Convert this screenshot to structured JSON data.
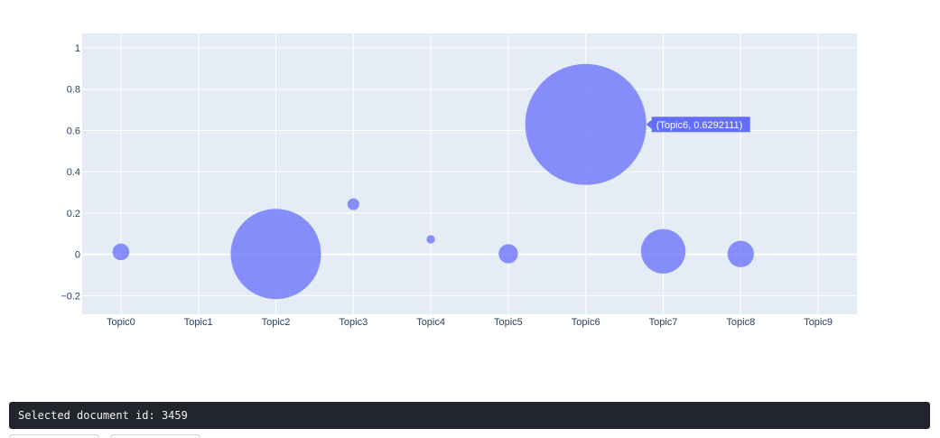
{
  "status": {
    "selected_document_text": "Selected document id: 3459"
  },
  "colors": {
    "plot_background": "#e5ecf6",
    "marker": "#636efa",
    "grid": "#ffffff",
    "tick_text": "#2a3f5f",
    "status_background": "#22252b"
  },
  "chart_data": {
    "type": "scatter",
    "categories": [
      "Topic0",
      "Topic1",
      "Topic2",
      "Topic3",
      "Topic4",
      "Topic5",
      "Topic6",
      "Topic7",
      "Topic8",
      "Topic9"
    ],
    "y_ticks": [
      -0.2,
      0,
      0.2,
      0.4,
      0.6,
      0.8,
      1
    ],
    "y_tick_labels": [
      "−0.2",
      "0",
      "0.2",
      "0.4",
      "0.6",
      "0.8",
      "1"
    ],
    "ylim": [
      -0.29,
      1.07
    ],
    "grid": true,
    "title": "",
    "xlabel": "",
    "ylabel": "",
    "points": [
      {
        "x": "Topic0",
        "y": 0.012,
        "size": 0.012
      },
      {
        "x": "Topic2",
        "y": 0.002,
        "size": 0.35
      },
      {
        "x": "Topic3",
        "y": 0.243,
        "size": 0.006
      },
      {
        "x": "Topic4",
        "y": 0.073,
        "size": 0.003
      },
      {
        "x": "Topic5",
        "y": 0.003,
        "size": 0.016
      },
      {
        "x": "Topic6",
        "y": 0.6292111,
        "size": 0.6292111
      },
      {
        "x": "Topic7",
        "y": 0.015,
        "size": 0.085
      },
      {
        "x": "Topic8",
        "y": 0.002,
        "size": 0.03
      }
    ],
    "hover": {
      "point": "Topic6",
      "label": "(Topic6, 0.6292111)"
    }
  }
}
